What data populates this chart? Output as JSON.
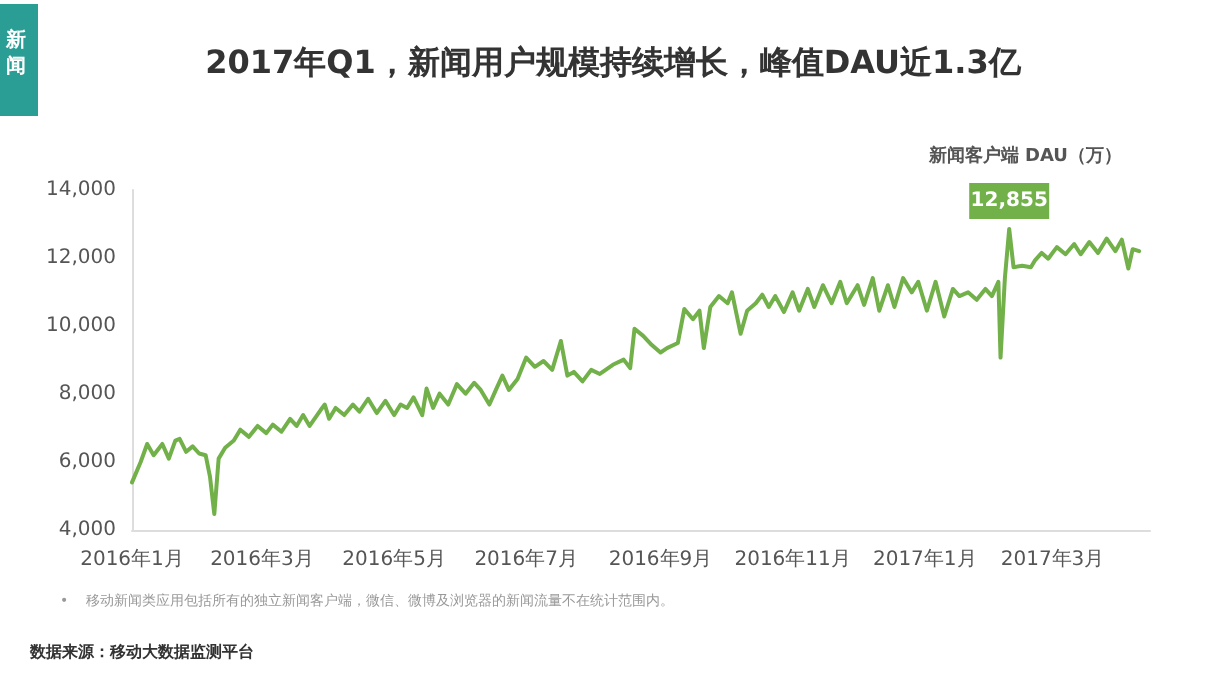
{
  "chart_data": {
    "type": "line",
    "title": "2017年Q1，新闻用户规模持续增长，峰值DAU近1.3亿",
    "ylabel": "新闻客户端 DAU（万）",
    "annotations": [
      "新闻",
      "•    移动新闻类应用包括所有的独立新闻客户端，微信、微博及浏览器的新闻流量不在统计范围内。",
      "数据来源：移动大数据监测平台",
      {
        "text": "12,855",
        "x": "2017-02-09",
        "y": 12855
      }
    ],
    "x": [
      "2016-01-01",
      "2016-01-05",
      "2016-01-08",
      "2016-01-11",
      "2016-01-15",
      "2016-01-18",
      "2016-01-21",
      "2016-01-23",
      "2016-01-26",
      "2016-01-29",
      "2016-02-01",
      "2016-02-04",
      "2016-02-06",
      "2016-02-08",
      "2016-02-10",
      "2016-02-13",
      "2016-02-17",
      "2016-02-20",
      "2016-02-24",
      "2016-02-28",
      "2016-03-03",
      "2016-03-06",
      "2016-03-10",
      "2016-03-14",
      "2016-03-17",
      "2016-03-20",
      "2016-03-23",
      "2016-03-28",
      "2016-03-30",
      "2016-04-01",
      "2016-04-04",
      "2016-04-08",
      "2016-04-12",
      "2016-04-15",
      "2016-04-19",
      "2016-04-23",
      "2016-04-27",
      "2016-05-01",
      "2016-05-04",
      "2016-05-07",
      "2016-05-10",
      "2016-05-14",
      "2016-05-16",
      "2016-05-19",
      "2016-05-22",
      "2016-05-26",
      "2016-05-30",
      "2016-06-03",
      "2016-06-07",
      "2016-06-10",
      "2016-06-14",
      "2016-06-17",
      "2016-06-20",
      "2016-06-23",
      "2016-06-27",
      "2016-07-01",
      "2016-07-05",
      "2016-07-09",
      "2016-07-13",
      "2016-07-17",
      "2016-07-20",
      "2016-07-23",
      "2016-07-27",
      "2016-07-31",
      "2016-08-04",
      "2016-08-10",
      "2016-08-15",
      "2016-08-18",
      "2016-08-20",
      "2016-08-24",
      "2016-08-28",
      "2016-09-01",
      "2016-09-04",
      "2016-09-09",
      "2016-09-12",
      "2016-09-16",
      "2016-09-19",
      "2016-09-21",
      "2016-09-24",
      "2016-09-28",
      "2016-10-02",
      "2016-10-04",
      "2016-10-08",
      "2016-10-11",
      "2016-10-15",
      "2016-10-18",
      "2016-10-21",
      "2016-10-24",
      "2016-10-28",
      "2016-11-01",
      "2016-11-04",
      "2016-11-08",
      "2016-11-11",
      "2016-11-15",
      "2016-11-19",
      "2016-11-23",
      "2016-11-26",
      "2016-12-01",
      "2016-12-04",
      "2016-12-08",
      "2016-12-11",
      "2016-12-15",
      "2016-12-18",
      "2016-12-22",
      "2016-12-26",
      "2016-12-29",
      "2017-01-02",
      "2017-01-06",
      "2017-01-10",
      "2017-01-14",
      "2017-01-17",
      "2017-01-21",
      "2017-01-25",
      "2017-01-29",
      "2017-02-01",
      "2017-02-04",
      "2017-02-05",
      "2017-02-07",
      "2017-02-09",
      "2017-02-11",
      "2017-02-15",
      "2017-02-19",
      "2017-02-21",
      "2017-02-24",
      "2017-02-27",
      "2017-03-03",
      "2017-03-07",
      "2017-03-11",
      "2017-03-14",
      "2017-03-18",
      "2017-03-22",
      "2017-03-26",
      "2017-03-30",
      "2017-04-02",
      "2017-04-05",
      "2017-04-07",
      "2017-04-10"
    ],
    "series": [
      {
        "color": "#72b04a",
        "values": [
          5400,
          6000,
          6530,
          6200,
          6530,
          6100,
          6630,
          6680,
          6300,
          6460,
          6250,
          6200,
          5570,
          4470,
          6100,
          6420,
          6630,
          6950,
          6740,
          7060,
          6850,
          7100,
          6890,
          7270,
          7060,
          7380,
          7060,
          7520,
          7690,
          7270,
          7590,
          7380,
          7690,
          7480,
          7860,
          7440,
          7800,
          7380,
          7690,
          7590,
          7900,
          7380,
          8160,
          7590,
          8010,
          7690,
          8290,
          8010,
          8330,
          8120,
          7690,
          8120,
          8540,
          8120,
          8440,
          9070,
          8800,
          8970,
          8710,
          9560,
          8540,
          8650,
          8370,
          8710,
          8590,
          8860,
          9010,
          8760,
          9920,
          9710,
          9440,
          9220,
          9350,
          9500,
          10500,
          10200,
          10450,
          9350,
          10560,
          10880,
          10670,
          10990,
          9770,
          10450,
          10670,
          10920,
          10560,
          10880,
          10410,
          10990,
          10450,
          11090,
          10560,
          11200,
          10670,
          11300,
          10670,
          11200,
          10620,
          11410,
          10450,
          11200,
          10560,
          11410,
          10990,
          11300,
          10450,
          11300,
          10280,
          11090,
          10880,
          10990,
          10770,
          11090,
          10880,
          11300,
          9070,
          11410,
          12855,
          11730,
          11770,
          11730,
          11940,
          12150,
          11980,
          12320,
          12110,
          12410,
          12110,
          12470,
          12150,
          12570,
          12200,
          12540,
          11690,
          12260,
          12200
        ]
      }
    ],
    "xlim": [
      "2016-01-01",
      "2017-04-15"
    ],
    "xticks": [
      {
        "value": "2016-01",
        "label": "2016年1月"
      },
      {
        "value": "2016-03",
        "label": "2016年3月"
      },
      {
        "value": "2016-05",
        "label": "2016年5月"
      },
      {
        "value": "2016-07",
        "label": "2016年7月"
      },
      {
        "value": "2016-09",
        "label": "2016年9月"
      },
      {
        "value": "2016-11",
        "label": "2016年11月"
      },
      {
        "value": "2017-01",
        "label": "2017年1月"
      },
      {
        "value": "2017-03",
        "label": "2017年3月"
      }
    ],
    "ylim": [
      4000,
      14000
    ],
    "yticks": [
      {
        "value": 4000,
        "label": "4,000"
      },
      {
        "value": 6000,
        "label": "6,000"
      },
      {
        "value": 8000,
        "label": "8,000"
      },
      {
        "value": 10000,
        "label": "10,000"
      },
      {
        "value": 12000,
        "label": "12,000"
      },
      {
        "value": 14000,
        "label": "14,000"
      }
    ],
    "grid": false,
    "marker": "none",
    "line_style": "solid"
  }
}
